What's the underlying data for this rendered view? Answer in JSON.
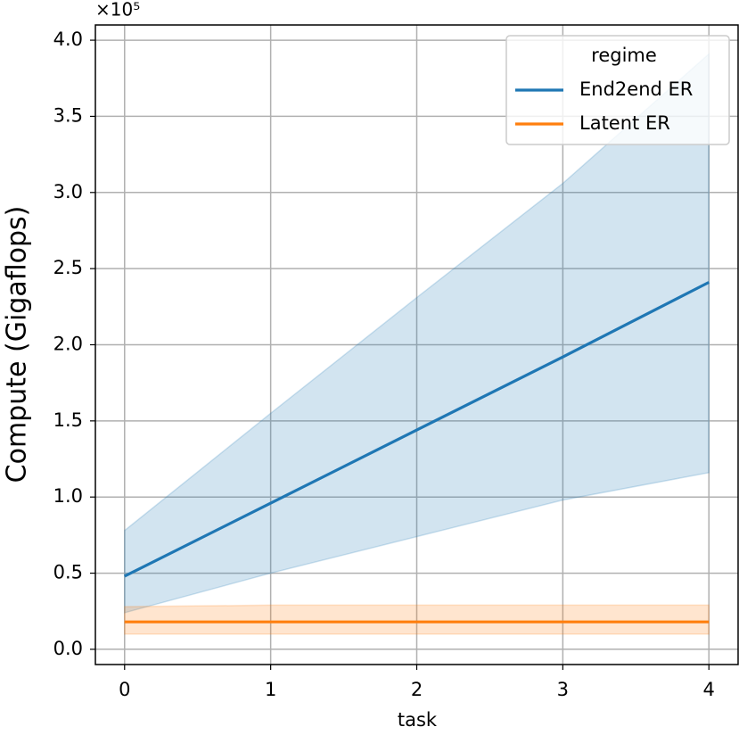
{
  "chart_data": {
    "type": "line",
    "x_label": "task",
    "y_label": "Compute  (Gigaflops)",
    "y_offset_label": "×10⁵",
    "x": [
      0,
      1,
      2,
      3,
      4
    ],
    "series": [
      {
        "name": "End2end ER",
        "color": "#1f77b4",
        "values": [
          0.48,
          0.96,
          1.44,
          1.92,
          2.41
        ],
        "lower": [
          0.24,
          0.5,
          0.74,
          0.98,
          1.16
        ],
        "upper": [
          0.78,
          1.55,
          2.31,
          3.06,
          3.91
        ]
      },
      {
        "name": "Latent ER",
        "color": "#ff7f0e",
        "values": [
          0.18,
          0.18,
          0.18,
          0.18,
          0.18
        ],
        "lower": [
          0.1,
          0.1,
          0.1,
          0.1,
          0.1
        ],
        "upper": [
          0.28,
          0.29,
          0.29,
          0.29,
          0.29
        ]
      }
    ],
    "xlim": [
      -0.2,
      4.2
    ],
    "xticks": [
      0,
      1,
      2,
      3,
      4
    ],
    "ylim": [
      -0.1,
      4.1
    ],
    "yticks": [
      {
        "value": 0,
        "label": "0.0"
      },
      {
        "value": 0.5,
        "label": "0.5"
      },
      {
        "value": 1,
        "label": "1.0"
      },
      {
        "value": 1.5,
        "label": "1.5"
      },
      {
        "value": 2,
        "label": "2.0"
      },
      {
        "value": 2.5,
        "label": "2.5"
      },
      {
        "value": 3,
        "label": "3.0"
      },
      {
        "value": 3.5,
        "label": "3.5"
      },
      {
        "value": 4,
        "label": "4.0"
      }
    ],
    "grid": true,
    "legend_title": "regime",
    "legend_position": "upper right",
    "band_opacity": 0.2
  }
}
